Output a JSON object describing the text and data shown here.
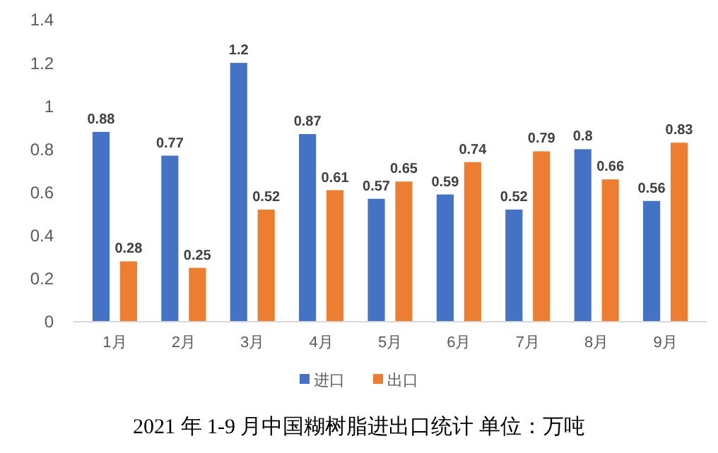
{
  "chart_data": {
    "type": "bar",
    "title": "2021 年 1-9 月中国糊树脂进出口统计    单位：万吨",
    "categories": [
      "1月",
      "2月",
      "3月",
      "4月",
      "5月",
      "6月",
      "7月",
      "8月",
      "9月"
    ],
    "series": [
      {
        "name": "进口",
        "color": "#4472c4",
        "values": [
          0.88,
          0.77,
          1.2,
          0.87,
          0.57,
          0.59,
          0.52,
          0.8,
          0.56
        ]
      },
      {
        "name": "出口",
        "color": "#ed7d31",
        "values": [
          0.28,
          0.25,
          0.52,
          0.61,
          0.65,
          0.74,
          0.79,
          0.66,
          0.83
        ]
      }
    ],
    "ylim": [
      0,
      1.4
    ],
    "yticks": [
      0,
      0.2,
      0.4,
      0.6,
      0.8,
      1,
      1.2,
      1.4
    ],
    "grid": false,
    "legend": "bottom",
    "data_labels": true
  }
}
